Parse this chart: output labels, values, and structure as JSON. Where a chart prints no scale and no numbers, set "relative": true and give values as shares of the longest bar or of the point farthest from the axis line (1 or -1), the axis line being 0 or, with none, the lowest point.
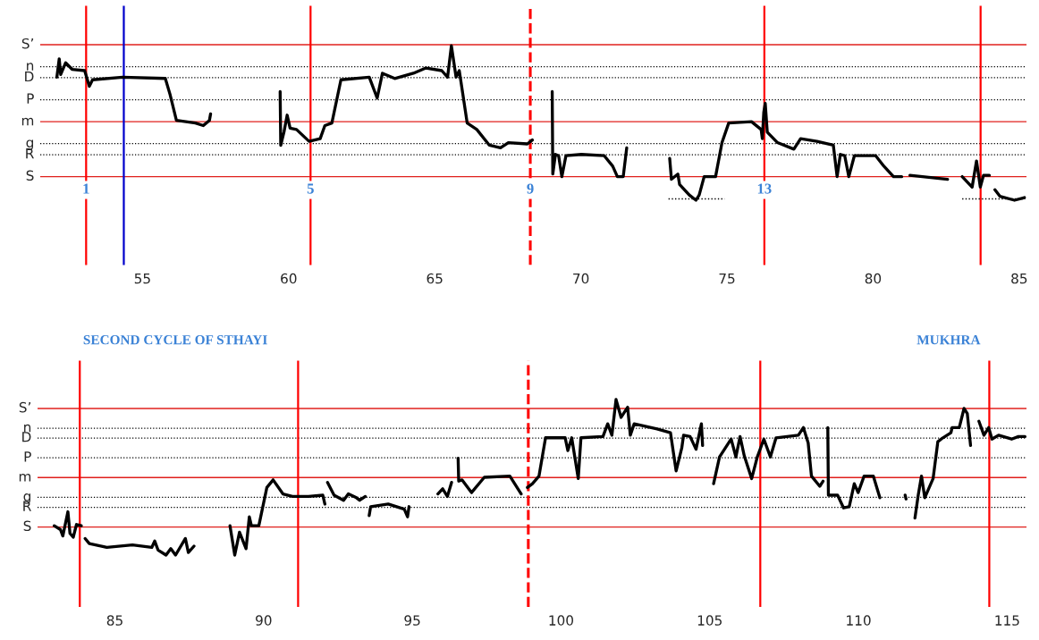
{
  "chart_data": [
    {
      "type": "line",
      "relative": true,
      "xlim": [
        51.5,
        85.25
      ],
      "xticks": [
        55,
        60,
        65,
        70,
        75,
        80,
        85
      ],
      "annotations": [
        {
          "text": "1",
          "x": 53.07,
          "y": -0.05
        },
        {
          "text": "5",
          "x": 60.75,
          "y": -0.05
        },
        {
          "text": "9",
          "x": 68.27,
          "y": -0.05
        },
        {
          "text": "13",
          "x": 76.28,
          "y": -0.05
        }
      ],
      "ref_lines": [
        {
          "axis": "y",
          "value": 0,
          "label": "S",
          "color": "#e0201c",
          "line_style": "solid"
        },
        {
          "axis": "y",
          "value": 0.168,
          "label": "R",
          "color": "#000000",
          "line_style": "dotted"
        },
        {
          "axis": "y",
          "value": 0.252,
          "label": "g",
          "color": "#000000",
          "line_style": "dotted"
        },
        {
          "axis": "y",
          "value": 0.42,
          "label": "m",
          "color": "#e0201c",
          "line_style": "solid"
        },
        {
          "axis": "y",
          "value": 0.588,
          "label": "P",
          "color": "#000000",
          "line_style": "dotted"
        },
        {
          "axis": "y",
          "value": 0.756,
          "label": "D",
          "color": "#000000",
          "line_style": "dotted"
        },
        {
          "axis": "y",
          "value": 0.84,
          "label": "n",
          "color": "#000000",
          "line_style": "dotted"
        },
        {
          "axis": "y",
          "value": 1.008,
          "label": "S’",
          "color": "#e0201c",
          "line_style": "solid"
        },
        {
          "axis": "x",
          "value": 53.07,
          "color": "#ff0000",
          "line_style": "solid"
        },
        {
          "axis": "x",
          "value": 54.36,
          "color": "#0000cc",
          "line_style": "solid"
        },
        {
          "axis": "x",
          "value": 60.75,
          "color": "#ff0000",
          "line_style": "solid"
        },
        {
          "axis": "x",
          "value": 68.27,
          "color": "#ff0000",
          "line_style": "dashed"
        },
        {
          "axis": "x",
          "value": 76.28,
          "color": "#ff0000",
          "line_style": "solid"
        },
        {
          "axis": "x",
          "value": 83.68,
          "color": "#ff0000",
          "line_style": "solid"
        }
      ],
      "series": [
        {
          "color": "#000000",
          "line_style": "solid",
          "x": [
            52.07,
            52.15,
            52.2,
            52.37,
            52.59,
            53.02,
            53.18,
            53.29,
            54.32,
            55.78,
            55.94,
            56.16,
            56.81,
            57.08,
            57.29,
            57.33,
            57.5,
            59.71,
            59.73,
            59.84,
            59.95,
            60.05,
            60.27,
            60.7,
            61.08,
            61.24,
            61.48,
            61.79,
            62.76,
            63.03,
            63.21,
            63.63,
            64.27,
            64.7,
            65.24,
            65.44,
            65.57,
            65.73,
            65.84,
            66.11,
            66.44,
            66.87,
            67.25,
            67.52,
            68.17,
            68.34,
            68.6,
            69.02,
            69.04,
            69.13,
            69.24,
            69.35,
            69.49,
            70.02,
            70.8,
            71.09,
            71.25,
            71.45,
            71.57,
            72.0,
            73.04,
            73.1,
            73.32,
            73.38,
            73.71,
            73.94,
            74.05,
            74.22,
            74.61,
            74.83,
            75.06,
            75.84,
            76.17,
            76.21,
            76.26,
            76.31,
            76.38,
            76.73,
            77.29,
            77.52,
            78.08,
            78.64,
            78.77,
            78.88,
            79.03,
            79.17,
            79.36,
            80.09,
            80.37,
            80.7,
            80.98,
            81.1,
            81.26,
            82.55,
            82.8,
            83.05,
            83.39,
            83.54,
            83.67,
            83.78,
            83.98,
            84.1,
            84.17,
            84.34,
            84.84,
            85.18
          ],
          "values": [
            0.76,
            0.9,
            0.78,
            0.87,
            0.82,
            0.81,
            0.69,
            0.74,
            0.76,
            0.75,
            0.63,
            0.43,
            0.41,
            0.39,
            0.43,
            0.48,
            null,
            0.65,
            0.24,
            0.34,
            0.47,
            0.37,
            0.36,
            0.27,
            0.29,
            0.39,
            0.41,
            0.74,
            0.76,
            0.6,
            0.79,
            0.75,
            0.79,
            0.83,
            0.81,
            0.76,
            1,
            0.76,
            0.81,
            0.41,
            0.36,
            0.24,
            0.22,
            0.26,
            0.25,
            0.28,
            null,
            0.65,
            0.02,
            0.17,
            0.16,
            0,
            0.16,
            0.17,
            0.16,
            0.08,
            0,
            0,
            0.22,
            null,
            0.14,
            -0.02,
            0.02,
            -0.06,
            -0.14,
            -0.18,
            -0.14,
            0,
            0,
            0.26,
            0.41,
            0.42,
            0.36,
            0.29,
            0.49,
            0.56,
            0.34,
            0.26,
            0.21,
            0.29,
            0.27,
            0.24,
            0,
            0.17,
            0.16,
            0,
            0.16,
            0.16,
            0.08,
            0,
            0,
            null,
            0.01,
            -0.02,
            null,
            0,
            -0.08,
            0.12,
            -0.08,
            0.01,
            0.01,
            null,
            -0.1,
            -0.15,
            -0.18,
            -0.16
          ]
        },
        {
          "color": "#000000",
          "line_style": "dotted",
          "x": [
            73.0,
            74.92,
            null,
            83.05,
            85.2
          ],
          "values": [
            -0.17,
            -0.17,
            null,
            -0.17,
            -0.17
          ]
        }
      ]
    },
    {
      "type": "line",
      "relative": true,
      "xlim": [
        82.4,
        115.65
      ],
      "xticks": [
        85,
        90,
        95,
        100,
        105,
        110,
        115
      ],
      "annotations": [
        "SECOND CYCLE OF STHAYI",
        "MUKHRA"
      ],
      "ref_lines": [
        {
          "axis": "y",
          "value": 0,
          "label": "S",
          "color": "#e0201c",
          "line_style": "solid"
        },
        {
          "axis": "y",
          "value": 0.155,
          "label": "R",
          "color": "#000000",
          "line_style": "dotted"
        },
        {
          "axis": "y",
          "value": 0.233,
          "label": "g",
          "color": "#000000",
          "line_style": "dotted"
        },
        {
          "axis": "y",
          "value": 0.388,
          "label": "m",
          "color": "#e0201c",
          "line_style": "solid"
        },
        {
          "axis": "y",
          "value": 0.543,
          "label": "P",
          "color": "#000000",
          "line_style": "dotted"
        },
        {
          "axis": "y",
          "value": 0.698,
          "label": "D",
          "color": "#000000",
          "line_style": "dotted"
        },
        {
          "axis": "y",
          "value": 0.775,
          "label": "n",
          "color": "#000000",
          "line_style": "dotted"
        },
        {
          "axis": "y",
          "value": 0.93,
          "label": "S’",
          "color": "#e0201c",
          "line_style": "solid"
        },
        {
          "axis": "x",
          "value": 83.82,
          "color": "#ff0000",
          "line_style": "solid"
        },
        {
          "axis": "x",
          "value": 91.16,
          "color": "#ff0000",
          "line_style": "solid"
        },
        {
          "axis": "x",
          "value": 98.9,
          "color": "#ff0000",
          "line_style": "dashed"
        },
        {
          "axis": "x",
          "value": 106.7,
          "color": "#ff0000",
          "line_style": "solid"
        },
        {
          "axis": "x",
          "value": 114.4,
          "color": "#ff0000",
          "line_style": "solid"
        }
      ],
      "series": [
        {
          "color": "#000000",
          "line_style": "solid",
          "x": [
            82.96,
            83.17,
            83.25,
            83.42,
            83.49,
            83.6,
            83.71,
            83.87,
            83.93,
            84.0,
            84.14,
            84.73,
            85.59,
            86.24,
            86.34,
            86.45,
            86.72,
            86.88,
            87.04,
            87.37,
            87.47,
            87.66,
            88.2,
            88.87,
            89.03,
            89.19,
            89.41,
            89.52,
            89.59,
            89.84,
            90.11,
            90.32,
            90.65,
            90.97,
            91.51,
            91.99,
            92.06,
            92.1,
            92.15,
            92.37,
            92.69,
            92.85,
            93.12,
            93.23,
            93.42,
            93.5,
            93.55,
            93.6,
            94.19,
            94.73,
            94.84,
            94.89,
            95.3,
            95.86,
            96.02,
            96.18,
            96.32,
            96.45,
            96.54,
            96.56,
            96.67,
            96.99,
            97.42,
            98.28,
            98.66,
            98.8,
            98.87,
            99.04,
            99.26,
            99.48,
            100.14,
            100.23,
            100.36,
            100.58,
            100.67,
            101.41,
            101.57,
            101.71,
            101.85,
            102.02,
            102.24,
            102.33,
            102.46,
            103.23,
            103.68,
            103.87,
            104.06,
            104.12,
            104.34,
            104.54,
            104.72,
            104.76,
            104.9,
            105.13,
            105.33,
            105.72,
            105.88,
            106.02,
            106.16,
            106.41,
            106.6,
            106.82,
            107.04,
            107.23,
            107.98,
            108.15,
            108.31,
            108.42,
            108.7,
            108.81,
            108.9,
            108.97,
            108.99,
            109.3,
            109.5,
            109.69,
            109.86,
            109.99,
            110.19,
            110.5,
            110.72,
            111.1,
            111.57,
            111.6,
            111.75,
            111.9,
            112.01,
            112.12,
            112.23,
            112.51,
            112.67,
            112.84,
            113.11,
            113.15,
            113.39,
            113.55,
            113.66,
            113.77,
            113.9,
            114.05,
            114.22,
            114.38,
            114.49,
            114.71,
            115.15,
            115.38,
            115.6
          ],
          "values": [
            0.01,
            -0.02,
            -0.07,
            0.12,
            -0.05,
            -0.08,
            0.02,
            0.01,
            null,
            -0.09,
            -0.13,
            -0.16,
            -0.14,
            -0.16,
            -0.11,
            -0.18,
            -0.22,
            -0.17,
            -0.22,
            -0.09,
            -0.2,
            -0.15,
            null,
            0.01,
            -0.22,
            -0.04,
            -0.17,
            0.08,
            0.01,
            0.01,
            0.31,
            0.37,
            0.26,
            0.24,
            0.24,
            0.25,
            0.18,
            null,
            0.35,
            0.25,
            0.21,
            0.26,
            0.23,
            0.21,
            0.24,
            null,
            0.09,
            0.16,
            0.18,
            0.14,
            0.08,
            0.16,
            null,
            0.26,
            0.3,
            0.24,
            0.35,
            null,
            0.54,
            0.36,
            0.37,
            0.27,
            0.39,
            0.4,
            0.26,
            null,
            0.31,
            0.34,
            0.4,
            0.7,
            0.7,
            0.6,
            0.7,
            0.38,
            0.7,
            0.71,
            0.81,
            0.72,
            1,
            0.86,
            0.94,
            0.72,
            0.81,
            0.77,
            0.74,
            0.44,
            0.62,
            0.72,
            0.71,
            0.61,
            0.81,
            0.64,
            null,
            0.34,
            0.55,
            0.69,
            0.55,
            0.71,
            0.56,
            0.38,
            0.55,
            0.69,
            0.55,
            0.7,
            0.72,
            0.78,
            0.66,
            0.4,
            0.32,
            0.36,
            null,
            0.78,
            0.25,
            0.25,
            0.15,
            0.16,
            0.34,
            0.27,
            0.4,
            0.4,
            0.23,
            null,
            0.25,
            0.22,
            null,
            0.07,
            0.25,
            0.4,
            0.23,
            0.38,
            0.67,
            0.7,
            0.74,
            0.78,
            0.78,
            0.93,
            0.89,
            0.64,
            null,
            0.83,
            0.72,
            0.78,
            0.69,
            0.72,
            0.69,
            0.71,
            0.71
          ]
        }
      ]
    }
  ]
}
